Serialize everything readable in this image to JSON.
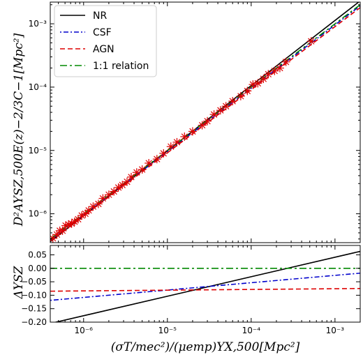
{
  "chart_data": [
    {
      "type": "scatter",
      "panel": "top",
      "xlabel": "(σT/mec²)/(μemp)YX,500[Mpc²]",
      "ylabel": "D²AYSZ,500E(z)−2/3C−1[Mpc²]",
      "xscale": "log",
      "yscale": "log",
      "xlim": [
        4e-07,
        0.002
      ],
      "ylim": [
        3.5e-07,
        0.0022
      ],
      "x_ticks": [
        {
          "value": 1e-06,
          "label": "10⁻⁶"
        },
        {
          "value": 1e-05,
          "label": "10⁻⁵"
        },
        {
          "value": 0.0001,
          "label": "10⁻⁴"
        },
        {
          "value": 0.001,
          "label": "10⁻³"
        }
      ],
      "y_ticks": [
        {
          "value": 1e-06,
          "label": "10⁻⁶"
        },
        {
          "value": 1e-05,
          "label": "10⁻⁵"
        },
        {
          "value": 0.0001,
          "label": "10⁻⁴"
        },
        {
          "value": 0.001,
          "label": "10⁻³"
        }
      ],
      "legend_position": "top-left",
      "series": [
        {
          "name": "NR",
          "kind": "line",
          "color": "#000000",
          "dash": "solid",
          "x": [
            4e-07,
            0.002
          ],
          "y": [
            3.62e-07,
            0.0023
          ]
        },
        {
          "name": "CSF",
          "kind": "line",
          "color": "#0000cc",
          "dash": "dashdot",
          "x": [
            4e-07,
            0.002
          ],
          "y": [
            3.82e-07,
            0.00192
          ]
        },
        {
          "name": "AGN",
          "kind": "line",
          "color": "#dd0000",
          "dash": "dashed",
          "x": [
            4e-07,
            0.002
          ],
          "y": [
            3.71e-07,
            0.0018
          ]
        },
        {
          "name": "1:1 relation",
          "kind": "line",
          "color": "#008800",
          "dash": "longdashdot",
          "x": [
            4e-07,
            0.002
          ],
          "y": [
            4e-07,
            0.002
          ]
        },
        {
          "name": "",
          "kind": "markers",
          "color": "#dd0000",
          "x": [
            4.3e-07,
            4.8e-07,
            5.2e-07,
            5.6e-07,
            6.1e-07,
            6.6e-07,
            7.2e-07,
            7.8e-07,
            8.6e-07,
            9.5e-07,
            1.05e-06,
            1.15e-06,
            1.3e-06,
            1.5e-06,
            1.7e-06,
            2e-06,
            2.3e-06,
            2.6e-06,
            2.9e-06,
            3.3e-06,
            3.7e-06,
            4.3e-06,
            5e-06,
            6e-06,
            7.5e-06,
            9e-06,
            1.1e-05,
            1.3e-05,
            1.6e-05,
            2e-05,
            2.6e-05,
            3e-05,
            3.6e-05,
            4.3e-05,
            5e-05,
            6e-05,
            7.5e-05,
            9e-05,
            0.000105,
            0.00012,
            0.00014,
            0.00016,
            0.00019,
            0.00022,
            0.00026,
            0.00052
          ],
          "y": [
            4.1e-07,
            4.7e-07,
            5.4e-07,
            5.4e-07,
            6.5e-07,
            6.8e-07,
            7e-07,
            7.5e-07,
            8.2e-07,
            9.4e-07,
            1e-06,
            1.13e-06,
            1.3e-06,
            1.43e-06,
            1.75e-06,
            2e-06,
            2.25e-06,
            2.6e-06,
            2.85e-06,
            3.2e-06,
            3.8e-06,
            4.5e-06,
            5e-06,
            6.3e-06,
            7.3e-06,
            9e-06,
            1.15e-05,
            1.35e-05,
            1.65e-05,
            2e-05,
            2.5e-05,
            2.9e-05,
            3.7e-05,
            4.3e-05,
            5e-05,
            6e-05,
            7.2e-05,
            8.7e-05,
            0.00011,
            0.000115,
            0.000135,
            0.00016,
            0.00018,
            0.0002,
            0.00025,
            0.00053
          ]
        }
      ]
    },
    {
      "type": "line",
      "panel": "bottom",
      "ylabel": "ΔYSZ",
      "xscale": "log",
      "xlim": [
        4e-07,
        0.002
      ],
      "ylim": [
        -0.2,
        0.085
      ],
      "x_ticks": [
        {
          "value": 1e-06,
          "label": "10⁻⁶"
        },
        {
          "value": 1e-05,
          "label": "10⁻⁵"
        },
        {
          "value": 0.0001,
          "label": "10⁻⁴"
        },
        {
          "value": 0.001,
          "label": "10⁻³"
        }
      ],
      "y_ticks": [
        {
          "value": 0.05,
          "label": "0.05"
        },
        {
          "value": 0.0,
          "label": "0.00"
        },
        {
          "value": -0.05,
          "label": "−0.05"
        },
        {
          "value": -0.1,
          "label": "−0.10"
        },
        {
          "value": -0.15,
          "label": "−0.15"
        },
        {
          "value": -0.2,
          "label": "−0.20"
        }
      ],
      "series": [
        {
          "name": "NR",
          "color": "#000000",
          "dash": "solid",
          "x": [
            4e-07,
            0.002
          ],
          "y": [
            -0.205,
            0.063
          ]
        },
        {
          "name": "CSF",
          "color": "#0000cc",
          "dash": "dashdot",
          "x": [
            4e-07,
            0.002
          ],
          "y": [
            -0.119,
            -0.018
          ]
        },
        {
          "name": "AGN",
          "color": "#dd0000",
          "dash": "dashed",
          "x": [
            4e-07,
            0.002
          ],
          "y": [
            -0.085,
            -0.075
          ]
        },
        {
          "name": "1:1 relation",
          "color": "#008800",
          "dash": "longdashdot",
          "x": [
            4e-07,
            0.002
          ],
          "y": [
            0.0,
            0.0
          ]
        }
      ]
    }
  ]
}
